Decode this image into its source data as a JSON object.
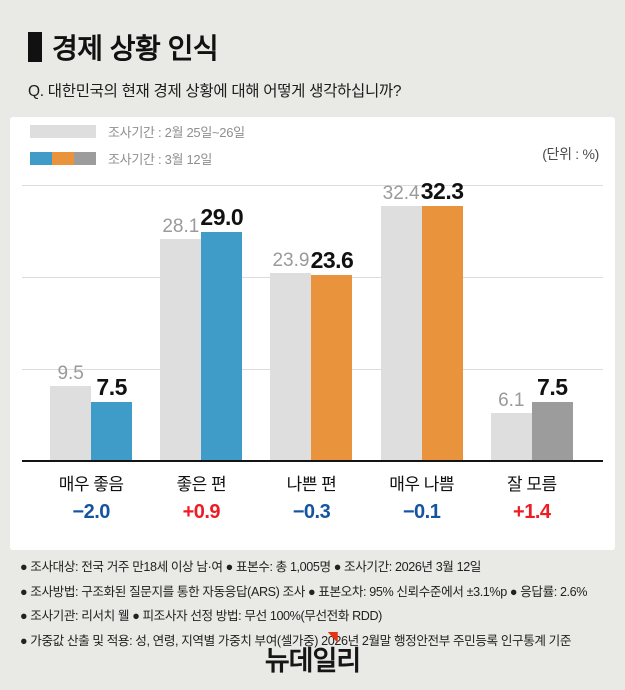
{
  "header": {
    "title": "경제 상황 인식",
    "question": "Q. 대한민국의 현재 경제 상황에 대해 어떻게 생각하십니까?"
  },
  "unit_label": "(단위 : %)",
  "legend": [
    {
      "label": "조사기간 : 2월 25일~26일",
      "colors": [
        "#dedede"
      ]
    },
    {
      "label": "조사기간 : 3월 12일",
      "colors": [
        "#3f9cc8",
        "#e9943c",
        "#9c9c9c"
      ]
    }
  ],
  "chart_data": {
    "type": "bar",
    "title": "경제 상황 인식",
    "unit": "%",
    "categories": [
      "매우 좋음",
      "좋은 편",
      "나쁜 편",
      "매우 나쁨",
      "잘 모름"
    ],
    "series": [
      {
        "name": "조사기간 : 2월 25일~26일",
        "values": [
          9.5,
          28.1,
          23.9,
          32.4,
          6.1
        ],
        "color": "#dedede",
        "label_color": "#9a9a9a"
      },
      {
        "name": "조사기간 : 3월 12일",
        "values": [
          7.5,
          29.0,
          23.6,
          32.3,
          7.5
        ],
        "bar_colors": [
          "#3f9cc8",
          "#3f9cc8",
          "#e9943c",
          "#e9943c",
          "#9c9c9c"
        ],
        "label_color": "#111111"
      }
    ],
    "deltas": [
      {
        "text": "−2.0",
        "color": "#15549e"
      },
      {
        "text": "+0.9",
        "color": "#ee1c23"
      },
      {
        "text": "−0.3",
        "color": "#15549e"
      },
      {
        "text": "−0.1",
        "color": "#15549e"
      },
      {
        "text": "+1.4",
        "color": "#ee1c23"
      }
    ],
    "ylim": [
      0,
      35
    ],
    "grid": "3 evenly spaced horizontal gridlines",
    "legend_position": "top-left"
  },
  "footer": {
    "lines": [
      "● 조사대상: 전국 거주 만18세 이상 남·여  ● 표본수: 총 1,005명  ● 조사기간: 2026년 3월 12일",
      "● 조사방법: 구조화된 질문지를 통한 자동응답(ARS) 조사  ● 표본오차: 95% 신뢰수준에서 ±3.1%p  ● 응답률: 2.6%",
      "● 조사기관: 리서치 웰  ● 피조사자 선정 방법: 무선 100%(무선전화 RDD)",
      "● 가중값 산출 및 적용: 성, 연령, 지역별 가중치 부여(셀가중) 2026년 2월말 행정안전부 주민등록 인구통계 기준"
    ]
  },
  "logo": {
    "text": "뉴데일리",
    "accent_color": "#e63312"
  }
}
